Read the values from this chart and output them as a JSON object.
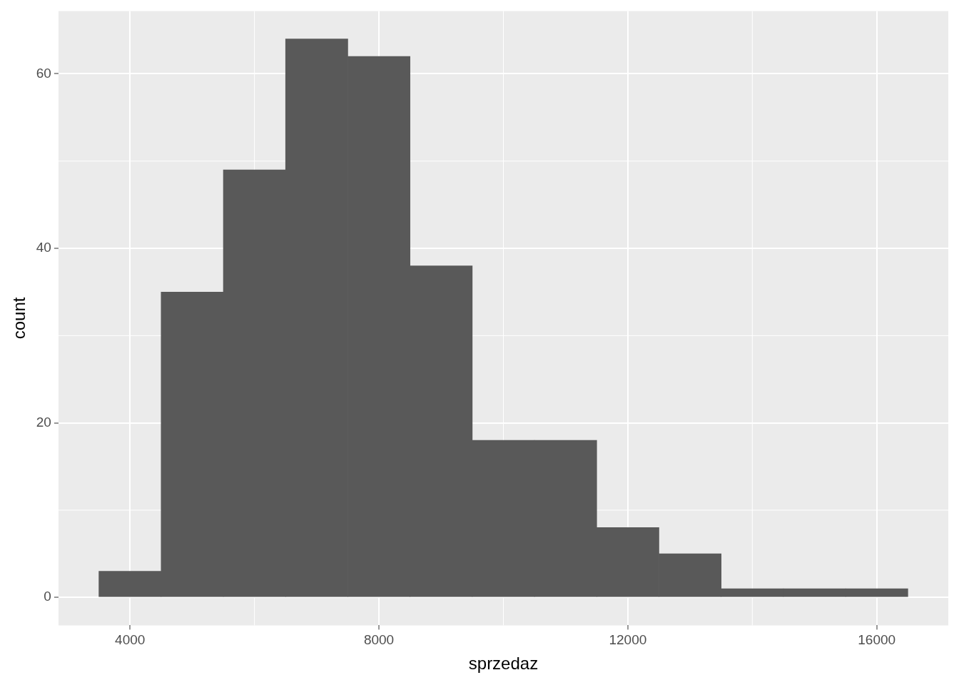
{
  "chart_data": {
    "type": "histogram",
    "xlabel": "sprzedaz",
    "ylabel": "count",
    "color": "#595959",
    "bins": [
      3500,
      4500,
      5500,
      6500,
      7500,
      8500,
      9500,
      10500,
      11500,
      12500,
      13500,
      14500,
      15500,
      16500
    ],
    "values": [
      3,
      35,
      49,
      64,
      62,
      38,
      18,
      18,
      8,
      5,
      1,
      1,
      1
    ],
    "xlim": [
      2850,
      17150
    ],
    "xticks": [
      4000,
      8000,
      12000,
      16000
    ],
    "ylim": [
      -3.2,
      67.2
    ],
    "yticks": [
      0,
      20,
      40,
      60
    ],
    "grid": true,
    "legend": false
  }
}
